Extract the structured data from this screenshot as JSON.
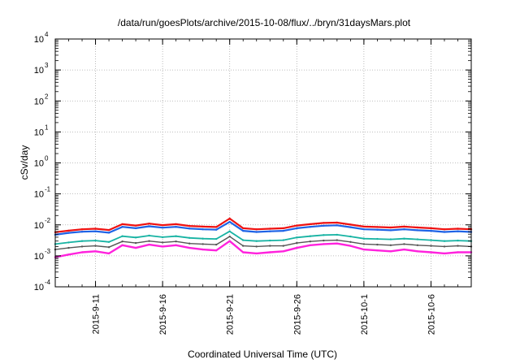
{
  "chart_data": {
    "type": "line",
    "title": "/data/run/goesPlots/archive/2015-10-08/flux/../bryn/31daysMars.plot",
    "xlabel": "Coordinated Universal Time (UTC)",
    "ylabel": "cSv/day",
    "yscale": "log",
    "ylim": [
      0.0001,
      10000
    ],
    "xlim": [
      "2015-09-08",
      "2015-10-09"
    ],
    "grid": true,
    "y_ticks": [
      {
        "base": "10",
        "exp": "-4",
        "value": 0.0001
      },
      {
        "base": "10",
        "exp": "-3",
        "value": 0.001
      },
      {
        "base": "10",
        "exp": "-2",
        "value": 0.01
      },
      {
        "base": "10",
        "exp": "-1",
        "value": 0.1
      },
      {
        "base": "10",
        "exp": "0",
        "value": 1
      },
      {
        "base": "10",
        "exp": "1",
        "value": 10
      },
      {
        "base": "10",
        "exp": "2",
        "value": 100
      },
      {
        "base": "10",
        "exp": "3",
        "value": 1000
      },
      {
        "base": "10",
        "exp": "4",
        "value": 10000
      }
    ],
    "x_ticks": [
      {
        "label": "2015-9-11",
        "date": "2015-09-11"
      },
      {
        "label": "2015-9-16",
        "date": "2015-09-16"
      },
      {
        "label": "2015-9-21",
        "date": "2015-09-21"
      },
      {
        "label": "2015-9-26",
        "date": "2015-09-26"
      },
      {
        "label": "2015-10-1",
        "date": "2015-10-01"
      },
      {
        "label": "2015-10-6",
        "date": "2015-10-06"
      }
    ],
    "x": [
      "2015-09-08",
      "2015-09-09",
      "2015-09-10",
      "2015-09-11",
      "2015-09-12",
      "2015-09-13",
      "2015-09-14",
      "2015-09-15",
      "2015-09-16",
      "2015-09-17",
      "2015-09-18",
      "2015-09-19",
      "2015-09-20",
      "2015-09-21",
      "2015-09-22",
      "2015-09-23",
      "2015-09-24",
      "2015-09-25",
      "2015-09-26",
      "2015-09-27",
      "2015-09-28",
      "2015-09-29",
      "2015-09-30",
      "2015-10-01",
      "2015-10-02",
      "2015-10-03",
      "2015-10-04",
      "2015-10-05",
      "2015-10-06",
      "2015-10-07",
      "2015-10-08",
      "2015-10-09"
    ],
    "series": [
      {
        "color": "#ee1111",
        "width": 2.2,
        "values": [
          0.0058,
          0.0065,
          0.0072,
          0.0075,
          0.0068,
          0.0105,
          0.0095,
          0.011,
          0.0098,
          0.0105,
          0.0092,
          0.0088,
          0.0085,
          0.016,
          0.0078,
          0.0072,
          0.0075,
          0.0078,
          0.0095,
          0.0105,
          0.0115,
          0.0118,
          0.0102,
          0.0088,
          0.0085,
          0.0082,
          0.0088,
          0.0082,
          0.0078,
          0.0072,
          0.0075,
          0.0072
        ]
      },
      {
        "color": "#1e63e6",
        "width": 2.2,
        "values": [
          0.0048,
          0.0055,
          0.006,
          0.0062,
          0.0056,
          0.0086,
          0.0078,
          0.009,
          0.0081,
          0.0086,
          0.0076,
          0.0072,
          0.007,
          0.0125,
          0.0064,
          0.0059,
          0.0062,
          0.0064,
          0.0078,
          0.0086,
          0.0094,
          0.0097,
          0.0084,
          0.0072,
          0.007,
          0.0067,
          0.0072,
          0.0067,
          0.0064,
          0.0059,
          0.0062,
          0.0059
        ]
      },
      {
        "color": "#17b3a3",
        "width": 1.8,
        "values": [
          0.0024,
          0.0027,
          0.003,
          0.0031,
          0.0028,
          0.0043,
          0.0039,
          0.0045,
          0.004,
          0.0043,
          0.0038,
          0.0036,
          0.0035,
          0.0062,
          0.0032,
          0.003,
          0.0031,
          0.0032,
          0.0039,
          0.0043,
          0.0047,
          0.0048,
          0.0042,
          0.0036,
          0.0035,
          0.0034,
          0.0036,
          0.0034,
          0.0032,
          0.003,
          0.0031,
          0.003
        ]
      },
      {
        "color": "#555555",
        "width": 1.4,
        "values": [
          0.0016,
          0.0018,
          0.002,
          0.0021,
          0.0019,
          0.0029,
          0.0026,
          0.003,
          0.0027,
          0.0029,
          0.0025,
          0.0024,
          0.0023,
          0.0042,
          0.0021,
          0.002,
          0.0021,
          0.0021,
          0.0026,
          0.0029,
          0.0031,
          0.0032,
          0.0028,
          0.0024,
          0.0023,
          0.0022,
          0.0024,
          0.0022,
          0.0021,
          0.002,
          0.0021,
          0.002
        ]
      },
      {
        "color": "#ff22dd",
        "width": 2.4,
        "values": [
          0.0009,
          0.0011,
          0.0013,
          0.0014,
          0.0012,
          0.0022,
          0.0018,
          0.0023,
          0.002,
          0.0022,
          0.0018,
          0.0016,
          0.0015,
          0.003,
          0.0013,
          0.0012,
          0.0013,
          0.0014,
          0.0018,
          0.0022,
          0.0024,
          0.0025,
          0.0021,
          0.0016,
          0.0015,
          0.0014,
          0.0016,
          0.0014,
          0.0013,
          0.0012,
          0.0013,
          0.0013
        ]
      }
    ]
  }
}
